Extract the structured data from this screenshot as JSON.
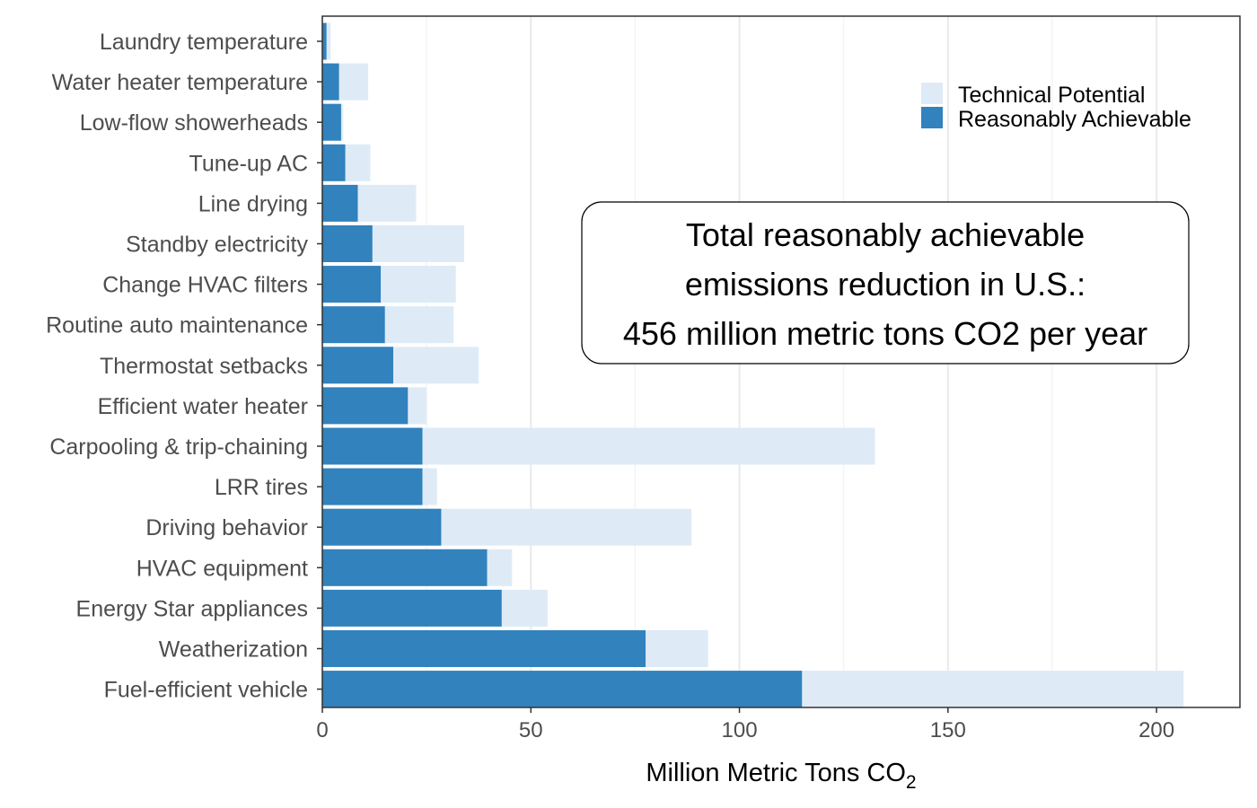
{
  "chart_data": {
    "type": "bar",
    "orientation": "horizontal",
    "categories": [
      "Laundry temperature",
      "Water heater temperature",
      "Low-flow showerheads",
      "Tune-up AC",
      "Line drying",
      "Standby electricity",
      "Change HVAC filters",
      "Routine auto maintenance",
      "Thermostat setbacks",
      "Efficient water heater",
      "Carpooling & trip-chaining",
      "LRR tires",
      "Driving behavior",
      "HVAC equipment",
      "Energy Star appliances",
      "Weatherization",
      "Fuel-efficient vehicle"
    ],
    "series": [
      {
        "name": "Technical Potential",
        "color": "#deebf7",
        "values": [
          2,
          11,
          5,
          11.5,
          22.5,
          34,
          32,
          31.5,
          37.5,
          25,
          132.5,
          27.5,
          88.5,
          45.5,
          54,
          92.5,
          206.5
        ]
      },
      {
        "name": "Reasonably Achievable",
        "color": "#3182bd",
        "values": [
          1,
          4,
          4.5,
          5.5,
          8.5,
          12,
          14,
          15,
          17,
          20.5,
          24,
          24,
          28.5,
          39.5,
          43,
          77.5,
          115
        ]
      }
    ],
    "xlabel": "Million Metric Tons CO",
    "xlabel_subscript": "2",
    "xlim": [
      0,
      220
    ],
    "xticks": [
      0,
      50,
      100,
      150,
      200
    ],
    "grid": "vertical",
    "legend_position": "top-right",
    "annotation": [
      "Total reasonably achievable",
      "emissions reduction in U.S.:",
      "456 million metric tons CO2 per year"
    ]
  }
}
